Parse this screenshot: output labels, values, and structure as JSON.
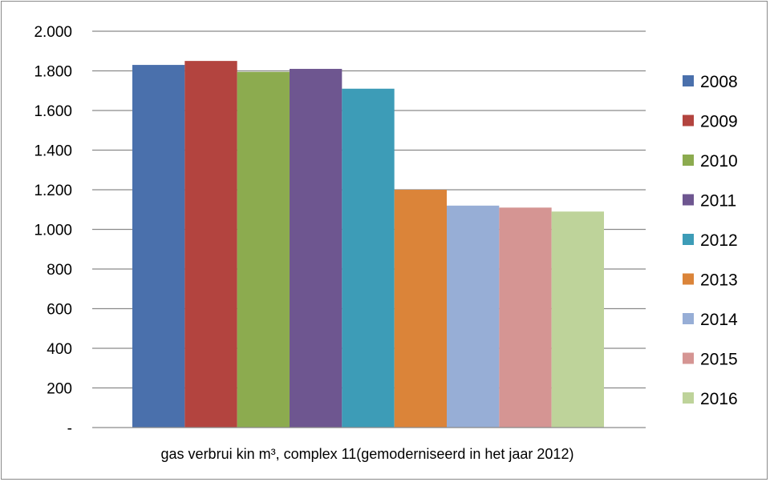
{
  "chart_data": {
    "type": "bar",
    "title": "",
    "xlabel": "",
    "ylabel": "",
    "categories": [
      "gas verbrui kin m³, complex 11(gemoderniseerd in het jaar 2012)"
    ],
    "series": [
      {
        "name": "2008",
        "color": "#4a70ac",
        "values": [
          1830
        ]
      },
      {
        "name": "2009",
        "color": "#b3443f",
        "values": [
          1850
        ]
      },
      {
        "name": "2010",
        "color": "#8cab4f",
        "values": [
          1795
        ]
      },
      {
        "name": "2011",
        "color": "#6e5690",
        "values": [
          1810
        ]
      },
      {
        "name": "2012",
        "color": "#3d9cb7",
        "values": [
          1710
        ]
      },
      {
        "name": "2013",
        "color": "#db8439",
        "values": [
          1200
        ]
      },
      {
        "name": "2014",
        "color": "#97aed6",
        "values": [
          1120
        ]
      },
      {
        "name": "2015",
        "color": "#d59593",
        "values": [
          1110
        ]
      },
      {
        "name": "2016",
        "color": "#bed39a",
        "values": [
          1090
        ]
      }
    ],
    "ylim": [
      0,
      2000
    ],
    "y_ticks": [
      0,
      200,
      400,
      600,
      800,
      1000,
      1200,
      1400,
      1600,
      1800,
      2000
    ],
    "y_tick_labels": [
      "-",
      "200",
      "400",
      "600",
      "800",
      "1.000",
      "1.200",
      "1.400",
      "1.600",
      "1.800",
      "2.000"
    ],
    "grid": true,
    "legend": "right"
  }
}
